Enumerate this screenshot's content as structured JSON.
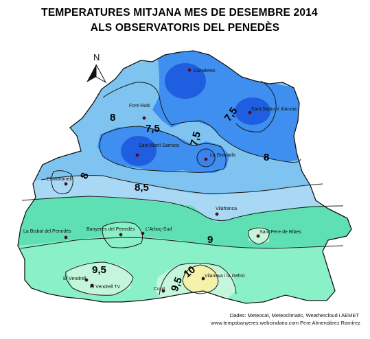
{
  "title": {
    "line1": "TEMPERATURES MITJANA MES DE DESEMBRE 2014",
    "line2": "ALS OBSERVATORIS DEL PENEDÈS"
  },
  "north_label": "N",
  "stations": [
    {
      "name": "Canaletes"
    },
    {
      "name": "Sant Sadurní d'Anoia"
    },
    {
      "name": "Font-Rubí"
    },
    {
      "name": "Sant Martí Sarroca"
    },
    {
      "name": "La Granada"
    },
    {
      "name": "El Montmell"
    },
    {
      "name": "Vilafranca"
    },
    {
      "name": "La Bisbal del Penedès"
    },
    {
      "name": "Banyeres del Penedès"
    },
    {
      "name": "L'Arboç-Sud"
    },
    {
      "name": "Sant Pere de Ribes"
    },
    {
      "name": "El Vendrell"
    },
    {
      "name": "El Vendrell TV"
    },
    {
      "name": "Cunit"
    },
    {
      "name": "Vilanova i la Geltrú"
    }
  ],
  "isotherm_labels": [
    "8",
    "7,5",
    "7,5",
    "7,5",
    "8",
    "8",
    "8,5",
    "9",
    "9,5",
    "9,5",
    "10"
  ],
  "credits": {
    "line1": "Dades: Meteocat, Meteoclimatic, Weathercloud i AEMET",
    "line2": "www.tempsbanyeres.webcindario.com   Pere Almendárez Ramírez"
  },
  "colors": {
    "deep_blue": "#1f5ee0",
    "mid_blue": "#3e8ff0",
    "light_blue": "#7fc4f0",
    "pale_blue": "#a9d8f5",
    "teal_green": "#5edfb4",
    "light_green": "#8af0c8",
    "pale_green": "#c4f6dc",
    "yellow": "#f4f2a8"
  }
}
